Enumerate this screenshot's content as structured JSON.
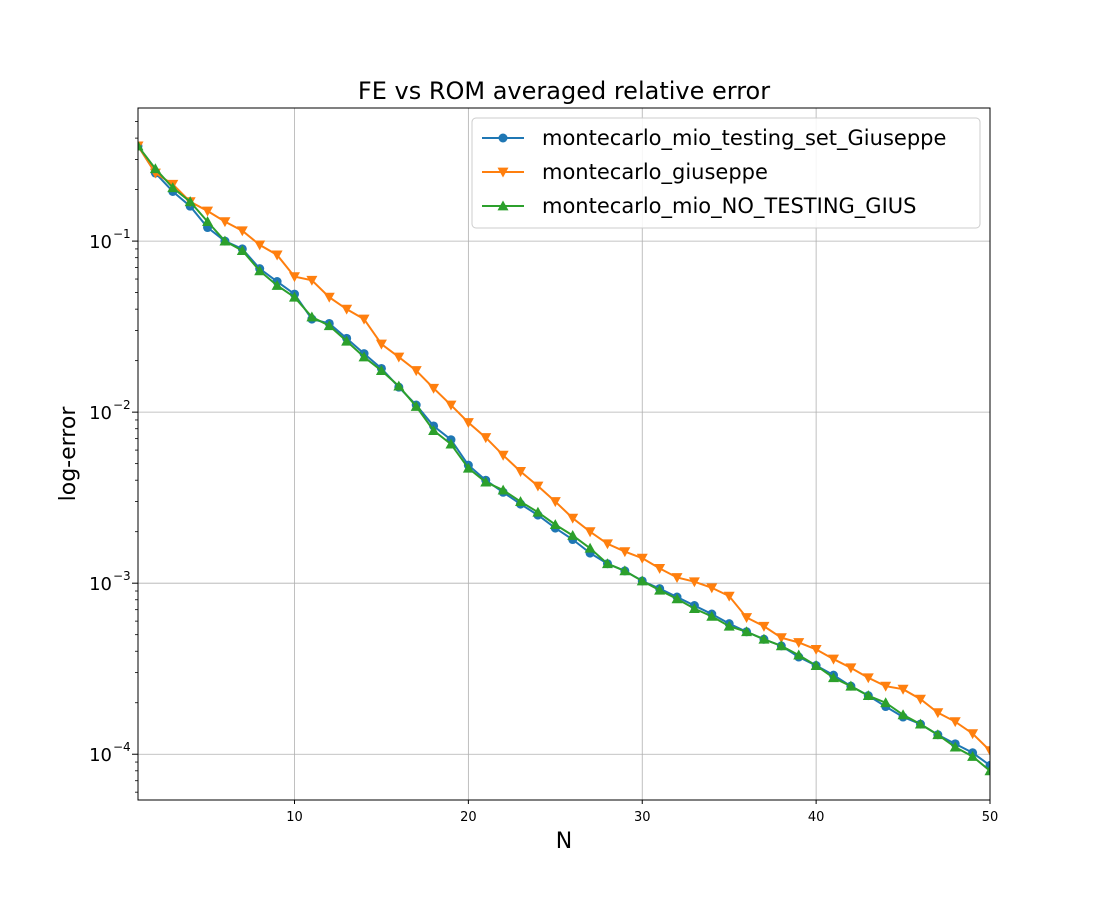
{
  "chart_data": {
    "type": "line",
    "title": "FE vs ROM averaged relative error",
    "xlabel": "N",
    "ylabel": "log-error",
    "xscale": "linear",
    "yscale": "log",
    "xlim": [
      1,
      50
    ],
    "ylim": [
      5.4e-05,
      0.6
    ],
    "xticks": [
      10,
      20,
      30,
      40,
      50
    ],
    "xtick_labels": [
      "10",
      "20",
      "30",
      "40",
      "50"
    ],
    "yticks": [
      0.0001,
      0.001,
      0.01,
      0.1
    ],
    "grid": true,
    "legend_position": "top-right",
    "x": [
      1,
      2,
      3,
      4,
      5,
      6,
      7,
      8,
      9,
      10,
      11,
      12,
      13,
      14,
      15,
      16,
      17,
      18,
      19,
      20,
      21,
      22,
      23,
      24,
      25,
      26,
      27,
      28,
      29,
      30,
      31,
      32,
      33,
      34,
      35,
      36,
      37,
      38,
      39,
      40,
      41,
      42,
      43,
      44,
      45,
      46,
      47,
      48,
      49,
      50
    ],
    "series": [
      {
        "name": "montecarlo_mio_testing_set_Giuseppe",
        "color": "#1f77b4",
        "marker": "circle",
        "values": [
          0.36,
          0.25,
          0.195,
          0.16,
          0.12,
          0.1,
          0.09,
          0.069,
          0.058,
          0.049,
          0.035,
          0.033,
          0.027,
          0.022,
          0.018,
          0.014,
          0.011,
          0.0083,
          0.0069,
          0.0049,
          0.004,
          0.0034,
          0.0029,
          0.0025,
          0.0021,
          0.0018,
          0.0015,
          0.0013,
          0.00118,
          0.00103,
          0.00093,
          0.00083,
          0.00074,
          0.00066,
          0.00058,
          0.00052,
          0.00047,
          0.00043,
          0.00037,
          0.00033,
          0.00029,
          0.00025,
          0.00022,
          0.00019,
          0.000165,
          0.00015,
          0.00013,
          0.000115,
          0.000102,
          8.6e-05
        ]
      },
      {
        "name": "montecarlo_giuseppe",
        "color": "#ff7f0e",
        "marker": "triangle-down",
        "values": [
          0.36,
          0.25,
          0.215,
          0.17,
          0.15,
          0.13,
          0.115,
          0.095,
          0.083,
          0.062,
          0.059,
          0.047,
          0.04,
          0.035,
          0.025,
          0.021,
          0.0175,
          0.0138,
          0.011,
          0.0087,
          0.0071,
          0.0056,
          0.0045,
          0.0037,
          0.003,
          0.0024,
          0.002,
          0.0017,
          0.00153,
          0.0014,
          0.00122,
          0.00108,
          0.00102,
          0.00094,
          0.00084,
          0.00063,
          0.00056,
          0.00048,
          0.00045,
          0.00041,
          0.00036,
          0.00032,
          0.00028,
          0.00025,
          0.00024,
          0.00021,
          0.000175,
          0.000155,
          0.000132,
          0.000105
        ]
      },
      {
        "name": "montecarlo_mio_NO_TESTING_GIUS",
        "color": "#2ca02c",
        "marker": "triangle-up",
        "values": [
          0.36,
          0.265,
          0.205,
          0.17,
          0.13,
          0.1,
          0.088,
          0.067,
          0.055,
          0.047,
          0.036,
          0.032,
          0.026,
          0.021,
          0.0175,
          0.0142,
          0.0108,
          0.0078,
          0.0065,
          0.0047,
          0.0039,
          0.0035,
          0.003,
          0.0026,
          0.0022,
          0.0019,
          0.0016,
          0.0013,
          0.00118,
          0.00103,
          0.00091,
          0.00081,
          0.00071,
          0.00064,
          0.00056,
          0.00052,
          0.00047,
          0.00043,
          0.00038,
          0.00033,
          0.00028,
          0.00025,
          0.00022,
          0.0002,
          0.00017,
          0.00015,
          0.00013,
          0.00011,
          9.7e-05,
          8e-05
        ]
      }
    ]
  }
}
